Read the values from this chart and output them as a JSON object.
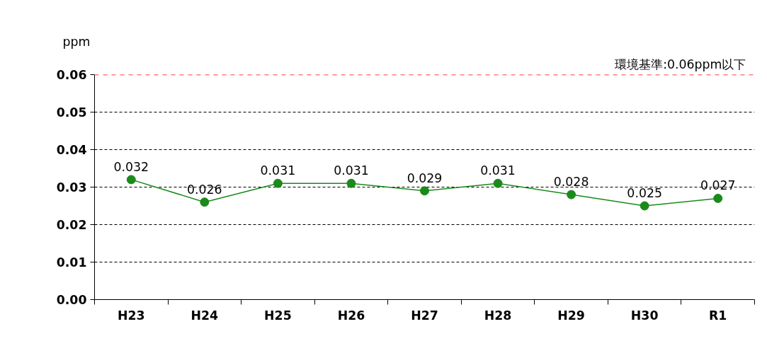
{
  "chart_data": {
    "type": "line",
    "ylabel": "ppm",
    "categories": [
      "H23",
      "H24",
      "H25",
      "H26",
      "H27",
      "H28",
      "H29",
      "H30",
      "R1"
    ],
    "series": [
      {
        "color": "#1a8a1a",
        "values": [
          0.032,
          0.026,
          0.031,
          0.031,
          0.029,
          0.031,
          0.028,
          0.025,
          0.027
        ]
      }
    ],
    "ylim": [
      0,
      0.06
    ],
    "yticks": [
      {
        "value": 0,
        "label": "0.00"
      },
      0.01,
      0.02,
      0.03,
      0.04,
      0.05,
      0.06
    ],
    "ref_lines": [
      {
        "axis": "y",
        "value": 0.06,
        "label": "環境基準:0.06ppm以下",
        "color": "#ff0000",
        "line_style": "dashed"
      }
    ],
    "data_labels": true,
    "grid": "y",
    "marker": "circle",
    "line_style": "solid"
  }
}
